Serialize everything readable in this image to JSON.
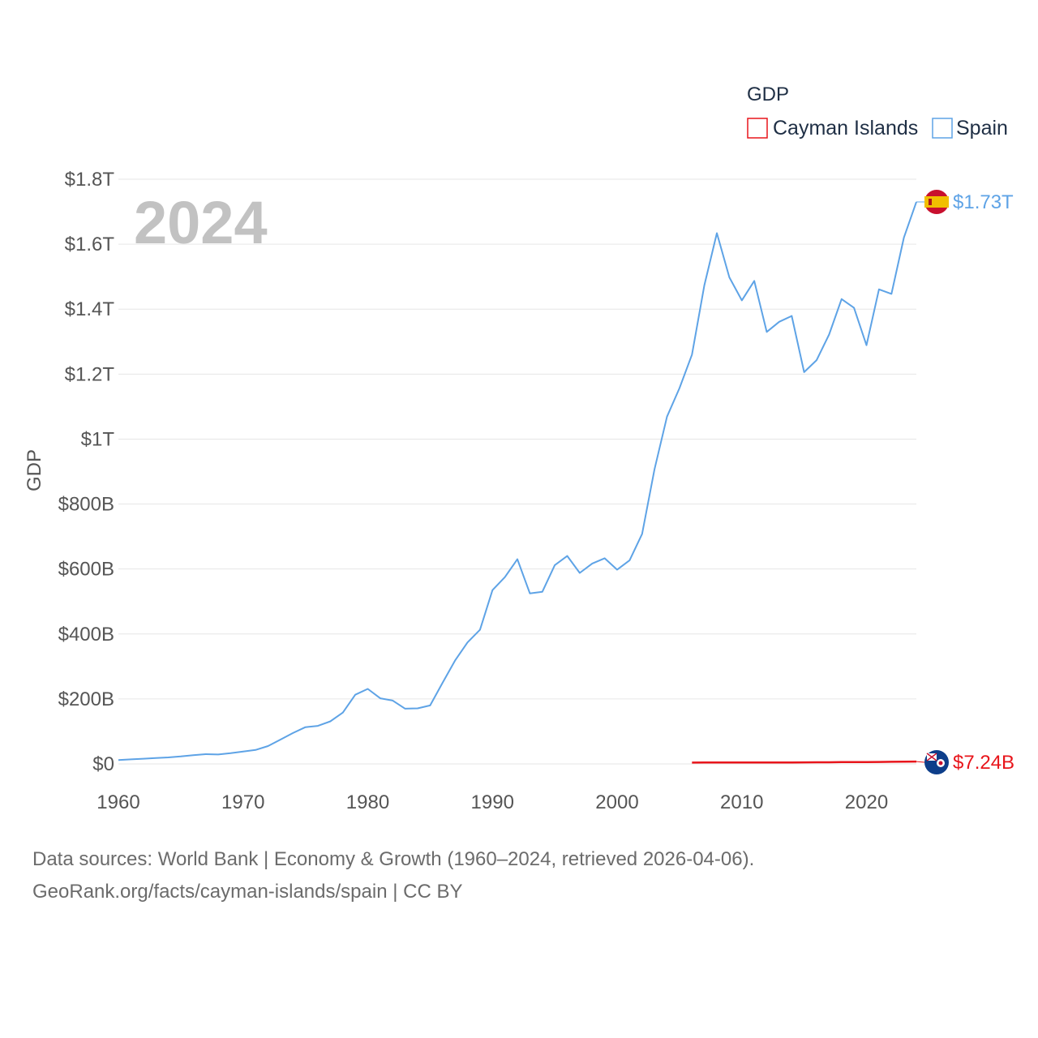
{
  "chart_data": {
    "type": "line",
    "title": "GDP",
    "ylabel": "GDP",
    "xlabel": "",
    "xlim": [
      1960,
      2024
    ],
    "ylim": [
      0,
      1800000000000
    ],
    "x_ticks": [
      1960,
      1970,
      1980,
      1990,
      2000,
      2010,
      2020
    ],
    "x_tick_labels": [
      "1960",
      "1970",
      "1980",
      "1990",
      "2000",
      "2010",
      "2020"
    ],
    "y_ticks": [
      0,
      200000000000,
      400000000000,
      600000000000,
      800000000000,
      1000000000000,
      1200000000000,
      1400000000000,
      1600000000000,
      1800000000000
    ],
    "y_tick_labels": [
      "$0",
      "$200B",
      "$400B",
      "$600B",
      "$800B",
      "$1T",
      "$1.2T",
      "$1.4T",
      "$1.6T",
      "$1.8T"
    ],
    "grid": true,
    "legend": {
      "title": "GDP",
      "position": "top-right"
    },
    "current_year_label": "2024",
    "series": [
      {
        "name": "Cayman Islands",
        "color": "#e8151b",
        "flag_icon": "cayman-islands-flag-icon",
        "end_label": "$7.24B",
        "x": [
          2006,
          2007,
          2008,
          2009,
          2010,
          2011,
          2012,
          2013,
          2014,
          2015,
          2016,
          2017,
          2018,
          2019,
          2020,
          2021,
          2022,
          2023,
          2024
        ],
        "values": [
          4000000000,
          4300000000,
          4500000000,
          4300000000,
          4200000000,
          4200000000,
          4300000000,
          4400000000,
          4500000000,
          4700000000,
          4900000000,
          5100000000,
          5400000000,
          5700000000,
          5500000000,
          6000000000,
          6500000000,
          7000000000,
          7240000000
        ]
      },
      {
        "name": "Spain",
        "color": "#5ea3e6",
        "flag_icon": "spain-flag-icon",
        "end_label": "$1.73T",
        "x": [
          1960,
          1961,
          1962,
          1963,
          1964,
          1965,
          1966,
          1967,
          1968,
          1969,
          1970,
          1971,
          1972,
          1973,
          1974,
          1975,
          1976,
          1977,
          1978,
          1979,
          1980,
          1981,
          1982,
          1983,
          1984,
          1985,
          1986,
          1987,
          1988,
          1989,
          1990,
          1991,
          1992,
          1993,
          1994,
          1995,
          1996,
          1997,
          1998,
          1999,
          2000,
          2001,
          2002,
          2003,
          2004,
          2005,
          2006,
          2007,
          2008,
          2009,
          2010,
          2011,
          2012,
          2013,
          2014,
          2015,
          2016,
          2017,
          2018,
          2019,
          2020,
          2021,
          2022,
          2023,
          2024
        ],
        "values": [
          12000000000,
          14000000000,
          16000000000,
          18000000000,
          20000000000,
          23000000000,
          27000000000,
          30000000000,
          29000000000,
          33000000000,
          38000000000,
          43000000000,
          55000000000,
          75000000000,
          95000000000,
          113000000000,
          117000000000,
          131000000000,
          158000000000,
          213000000000,
          231000000000,
          202000000000,
          195000000000,
          170000000000,
          171000000000,
          180000000000,
          250000000000,
          318000000000,
          374000000000,
          413000000000,
          535000000000,
          575000000000,
          630000000000,
          525000000000,
          530000000000,
          612000000000,
          640000000000,
          588000000000,
          617000000000,
          633000000000,
          598000000000,
          627000000000,
          708000000000,
          907000000000,
          1069000000000,
          1157000000000,
          1260000000000,
          1474000000000,
          1634000000000,
          1498000000000,
          1427000000000,
          1487000000000,
          1330000000000,
          1361000000000,
          1379000000000,
          1206000000000,
          1243000000000,
          1322000000000,
          1431000000000,
          1404000000000,
          1289000000000,
          1461000000000,
          1447000000000,
          1620000000000,
          1730000000000
        ]
      }
    ]
  },
  "footer": {
    "source_line": "Data sources: World Bank | Economy & Growth (1960–2024, retrieved 2026-04-06).",
    "attribution_line": "GeoRank.org/facts/cayman-islands/spain | CC BY"
  }
}
